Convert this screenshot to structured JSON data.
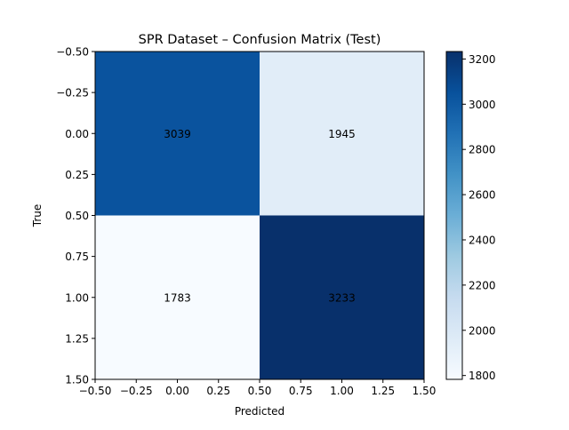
{
  "chart_data": {
    "type": "heatmap",
    "title": "SPR Dataset – Confusion Matrix (Test)",
    "xlabel": "Predicted",
    "ylabel": "True",
    "matrix": [
      [
        3039,
        1945
      ],
      [
        1783,
        3233
      ]
    ],
    "cell_labels": [
      [
        "3039",
        "1945"
      ],
      [
        "1783",
        "3233"
      ]
    ],
    "xlim": [
      -0.5,
      1.5
    ],
    "ylim": [
      1.5,
      -0.5
    ],
    "x_ticks": [
      -0.5,
      -0.25,
      0.0,
      0.25,
      0.5,
      0.75,
      1.0,
      1.25,
      1.5
    ],
    "x_tick_labels": [
      "−0.50",
      "−0.25",
      "0.00",
      "0.25",
      "0.50",
      "0.75",
      "1.00",
      "1.25",
      "1.50"
    ],
    "y_ticks": [
      -0.5,
      -0.25,
      0.0,
      0.25,
      0.5,
      0.75,
      1.0,
      1.25,
      1.5
    ],
    "y_tick_labels": [
      "−0.50",
      "−0.25",
      "0.00",
      "0.25",
      "0.50",
      "0.75",
      "1.00",
      "1.25",
      "1.50"
    ],
    "colormap": "Blues",
    "color_range": [
      1783,
      3233
    ],
    "colorbar_ticks": [
      1800,
      2000,
      2200,
      2400,
      2600,
      2800,
      3000,
      3200
    ],
    "colorbar_tick_labels": [
      "1800",
      "2000",
      "2200",
      "2400",
      "2600",
      "2800",
      "3000",
      "3200"
    ],
    "grid": false
  }
}
